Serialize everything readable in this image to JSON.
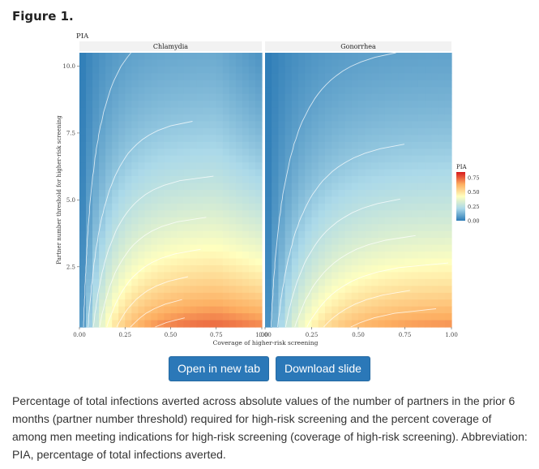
{
  "figure_label": "Figure 1.",
  "buttons": {
    "open": "Open in new tab",
    "download": "Download slide"
  },
  "caption": "Percentage of total infections averted across absolute values of the number of partners in the prior 6 months (partner number threshold) required for high-risk screening and the percent coverage of among men meeting indications for high-risk screening (coverage of high-risk screening). Abbreviation: PIA, percentage of total infections averted.",
  "chart_data": {
    "type": "heatmap",
    "title": "PIA",
    "xlabel": "Coverage of higher-risk screening",
    "ylabel": "Partner number threshold for higher-risk screening",
    "xlim": [
      0,
      1
    ],
    "ylim": [
      0.25,
      10.5
    ],
    "x_ticks": [
      "0.00",
      "0.25",
      "0.50",
      "0.75",
      "1.00"
    ],
    "y_ticks": [
      "2.5",
      "5.0",
      "7.5",
      "10.0"
    ],
    "legend": {
      "title": "PIA",
      "ticks": [
        "0.75",
        "0.50",
        "0.25",
        "0.00"
      ],
      "placement": "right",
      "colors": [
        "#2c7bb6",
        "#abd9e9",
        "#ffffbf",
        "#fdae61",
        "#d7191c"
      ]
    },
    "facets": [
      {
        "name": "Chlamydia",
        "peak": 0.85,
        "peak_location": [
          0.65,
          1.0
        ],
        "contour_levels": [
          0.1,
          0.2,
          0.3,
          0.4,
          0.5,
          0.6,
          0.7,
          0.8
        ]
      },
      {
        "name": "Gonorrhea",
        "peak": 0.78,
        "peak_location": [
          0.85,
          1.0
        ],
        "contour_levels": [
          0.1,
          0.2,
          0.3,
          0.4,
          0.5,
          0.6,
          0.7
        ]
      }
    ]
  }
}
